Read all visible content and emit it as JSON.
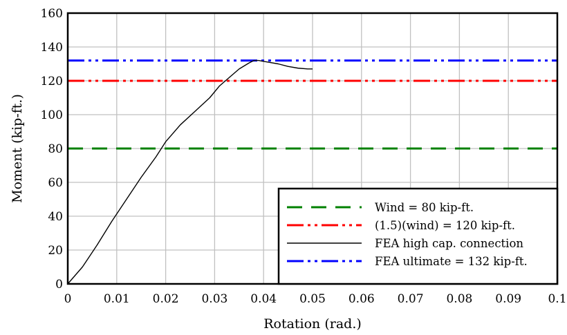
{
  "chart_data": {
    "type": "line",
    "xlabel": "Rotation (rad.)",
    "ylabel": "Moment (kip-ft.)",
    "xlim": [
      0,
      0.1
    ],
    "ylim": [
      0,
      160
    ],
    "x_ticks": [
      0,
      0.01,
      0.02,
      0.03,
      0.04,
      0.05,
      0.06,
      0.07,
      0.08,
      0.09,
      0.1
    ],
    "x_tick_labels": [
      "0",
      "0.01",
      "0.02",
      "0.03",
      "0.04",
      "0.05",
      "0.06",
      "0.07",
      "0.08",
      "0.09",
      "0.1"
    ],
    "y_ticks": [
      0,
      20,
      40,
      60,
      80,
      100,
      120,
      140,
      160
    ],
    "y_tick_labels": [
      "0",
      "20",
      "40",
      "60",
      "80",
      "100",
      "120",
      "140",
      "160"
    ],
    "grid": true,
    "legend_position": "bottom-right",
    "series": [
      {
        "name": "Wind = 80 kip-ft.",
        "color": "#008000",
        "style": "dash-long",
        "x": [
          0,
          0.1
        ],
        "y": [
          80,
          80
        ]
      },
      {
        "name": "(1.5)(wind) = 120 kip-ft.",
        "color": "#ff0000",
        "style": "dash-dot-dot",
        "x": [
          0,
          0.1
        ],
        "y": [
          120,
          120
        ]
      },
      {
        "name": "FEA high cap. connection",
        "color": "#000000",
        "style": "solid",
        "x": [
          0,
          0.003,
          0.006,
          0.009,
          0.012,
          0.015,
          0.018,
          0.02,
          0.023,
          0.026,
          0.029,
          0.031,
          0.033,
          0.035,
          0.037,
          0.038,
          0.039,
          0.041,
          0.043,
          0.045,
          0.047,
          0.049,
          0.05
        ],
        "y": [
          0,
          10,
          23,
          37,
          50,
          63,
          75,
          84,
          94,
          102,
          110,
          117,
          122,
          127,
          130.5,
          132,
          132,
          131,
          130,
          128.5,
          127.5,
          127,
          127
        ]
      },
      {
        "name": "FEA ultimate = 132 kip-ft.",
        "color": "#0000ff",
        "style": "dash-dot-dot",
        "x": [
          0,
          0.1
        ],
        "y": [
          132,
          132
        ]
      }
    ]
  }
}
